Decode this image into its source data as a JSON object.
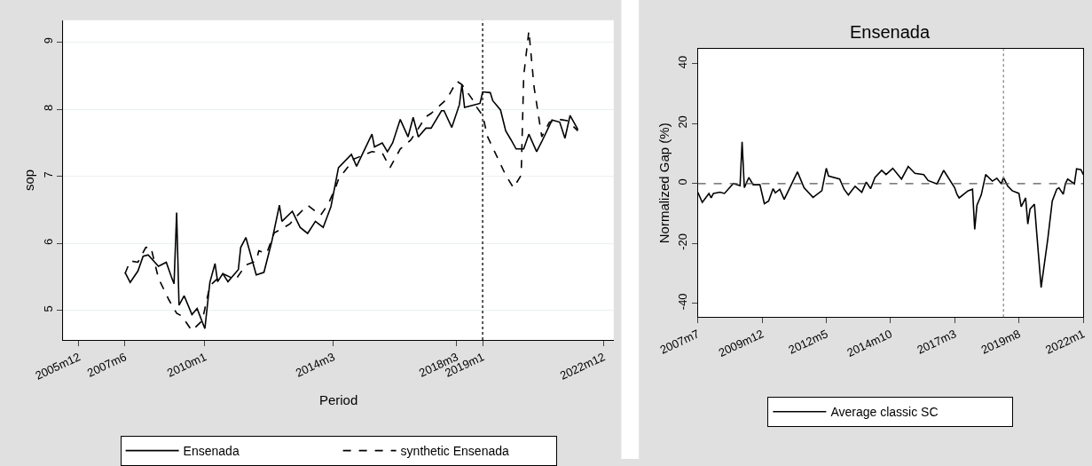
{
  "chart_data": [
    {
      "type": "line",
      "xlabel": "Period",
      "ylabel": "sop",
      "xlim": [
        "2005-06",
        "2023-04"
      ],
      "ylim": [
        4.56,
        9.33
      ],
      "xticks": [
        {
          "value": "2005-12",
          "label": "2005m12"
        },
        {
          "value": "2007-06",
          "label": "2007m6"
        },
        {
          "value": "2010-01",
          "label": "2010m1"
        },
        {
          "value": "2014-03",
          "label": "2014m3"
        },
        {
          "value": "2018-03",
          "label": "2018m3"
        },
        {
          "value": "2019-01",
          "label": "2019m1"
        },
        {
          "value": "2022-12",
          "label": "2022m12"
        }
      ],
      "yticks": [
        5,
        6,
        7,
        8,
        9
      ],
      "grid": "y",
      "legend": "bottom",
      "ref_lines": [
        {
          "axis": "x",
          "value": "2019-01",
          "color": "#000000",
          "line_style": "dotted"
        }
      ],
      "series": [
        {
          "name": "Ensenada",
          "color": "#000000",
          "line_style": "solid",
          "x": [
            "2007-06",
            "2007-08",
            "2007-11",
            "2008-01",
            "2008-03",
            "2008-07",
            "2008-10",
            "2008-12",
            "2009-01",
            "2009-02",
            "2009-03",
            "2009-05",
            "2009-08",
            "2009-10",
            "2010-01",
            "2010-03",
            "2010-05",
            "2010-06",
            "2010-08",
            "2010-10",
            "2011-02",
            "2011-03",
            "2011-05",
            "2011-09",
            "2011-12",
            "2012-03",
            "2012-06",
            "2012-07",
            "2012-11",
            "2013-02",
            "2013-05",
            "2013-08",
            "2013-11",
            "2014-02",
            "2014-05",
            "2014-10",
            "2014-12",
            "2015-06",
            "2015-07",
            "2015-10",
            "2015-12",
            "2016-02",
            "2016-05",
            "2016-08",
            "2016-10",
            "2016-12",
            "2017-03",
            "2017-05",
            "2017-09",
            "2017-10",
            "2018-01",
            "2018-04",
            "2018-05",
            "2018-06",
            "2018-10",
            "2018-12",
            "2019-01",
            "2019-04",
            "2019-05",
            "2019-08",
            "2019-10",
            "2019-12",
            "2020-02",
            "2020-05",
            "2020-07",
            "2020-10",
            "2020-12",
            "2021-04",
            "2021-07",
            "2021-09",
            "2021-11",
            "2022-02"
          ],
          "values": [
            5.57,
            5.42,
            5.59,
            5.81,
            5.83,
            5.66,
            5.72,
            5.5,
            5.4,
            6.46,
            5.08,
            5.22,
            4.94,
            5.03,
            4.73,
            5.42,
            5.7,
            5.43,
            5.55,
            5.43,
            5.61,
            5.94,
            6.09,
            5.53,
            5.57,
            6.02,
            6.57,
            6.33,
            6.48,
            6.24,
            6.15,
            6.33,
            6.24,
            6.55,
            7.13,
            7.33,
            7.15,
            7.63,
            7.44,
            7.5,
            7.37,
            7.5,
            7.85,
            7.59,
            7.88,
            7.59,
            7.72,
            7.72,
            7.98,
            7.98,
            7.73,
            8.07,
            8.37,
            8.03,
            8.07,
            8.09,
            8.26,
            8.25,
            8.13,
            7.99,
            7.68,
            7.55,
            7.41,
            7.41,
            7.63,
            7.37,
            7.52,
            7.84,
            7.81,
            7.57,
            7.91,
            7.7
          ]
        },
        {
          "name": "synthetic Ensenada",
          "color": "#000000",
          "line_style": "dashed",
          "x": [
            "2007-06",
            "2007-08",
            "2007-11",
            "2008-02",
            "2008-04",
            "2008-07",
            "2008-11",
            "2009-02",
            "2009-04",
            "2009-08",
            "2009-12",
            "2010-03",
            "2010-08",
            "2011-01",
            "2011-05",
            "2011-09",
            "2011-10",
            "2012-01",
            "2012-04",
            "2012-07",
            "2012-10",
            "2013-01",
            "2013-05",
            "2013-10",
            "2014-01",
            "2014-04",
            "2014-05",
            "2014-11",
            "2015-06",
            "2015-10",
            "2016-01",
            "2016-05",
            "2016-09",
            "2017-03",
            "2017-05",
            "2017-11",
            "2018-03",
            "2018-05",
            "2018-09",
            "2018-10",
            "2019-01",
            "2019-03",
            "2019-10",
            "2020-01",
            "2020-04",
            "2020-05",
            "2020-07",
            "2020-09",
            "2020-12",
            "2021-03",
            "2021-07",
            "2021-10",
            "2022-02"
          ],
          "values": [
            5.55,
            5.74,
            5.72,
            5.94,
            5.95,
            5.48,
            5.16,
            4.96,
            4.92,
            4.7,
            4.85,
            5.37,
            5.55,
            5.46,
            5.68,
            5.74,
            5.89,
            5.85,
            6.16,
            6.22,
            6.29,
            6.42,
            6.57,
            6.42,
            6.59,
            6.85,
            6.96,
            7.26,
            7.37,
            7.35,
            7.13,
            7.41,
            7.54,
            7.89,
            7.94,
            8.15,
            8.42,
            8.37,
            8.15,
            8.07,
            7.91,
            7.59,
            7.02,
            6.83,
            7.02,
            8.5,
            9.17,
            8.33,
            7.59,
            7.81,
            7.85,
            7.83,
            7.68
          ]
        }
      ]
    },
    {
      "type": "line",
      "title": "Ensenada",
      "ylabel": "Normalized Gap (%)",
      "xlim": [
        "2007-07",
        "2022-01"
      ],
      "ylim": [
        -44.6,
        44.9
      ],
      "xticks": [
        {
          "value": "2007-07",
          "label": "2007m7"
        },
        {
          "value": "2009-12",
          "label": "2009m12"
        },
        {
          "value": "2012-05",
          "label": "2012m5"
        },
        {
          "value": "2014-10",
          "label": "2014m10"
        },
        {
          "value": "2017-03",
          "label": "2017m3"
        },
        {
          "value": "2019-08",
          "label": "2019m8"
        },
        {
          "value": "2022-01",
          "label": "2022m1"
        }
      ],
      "yticks": [
        -40,
        -20,
        0,
        20,
        40
      ],
      "legend": "bottom",
      "ref_lines": [
        {
          "axis": "y",
          "value": 0,
          "color": "#555555",
          "line_style": "dashed"
        },
        {
          "axis": "x",
          "value": "2019-01",
          "color": "#888888",
          "line_style": "dotted"
        }
      ],
      "series": [
        {
          "name": "Average classic SC",
          "color": "#000000",
          "line_style": "solid",
          "x": [
            "2007-07",
            "2007-09",
            "2007-12",
            "2008-01",
            "2008-02",
            "2008-05",
            "2008-07",
            "2008-11",
            "2009-02",
            "2009-03",
            "2009-04",
            "2009-06",
            "2009-08",
            "2009-11",
            "2010-01",
            "2010-03",
            "2010-05",
            "2010-06",
            "2010-08",
            "2010-10",
            "2011-04",
            "2011-07",
            "2011-11",
            "2012-03",
            "2012-05",
            "2012-06",
            "2012-11",
            "2013-01",
            "2013-03",
            "2013-06",
            "2013-09",
            "2013-11",
            "2014-01",
            "2014-03",
            "2014-06",
            "2014-08",
            "2014-11",
            "2015-03",
            "2015-06",
            "2015-09",
            "2016-01",
            "2016-03",
            "2016-07",
            "2016-10",
            "2017-03",
            "2017-04",
            "2017-05",
            "2017-09",
            "2017-11",
            "2017-12",
            "2018-01",
            "2018-03",
            "2018-05",
            "2018-08",
            "2018-10",
            "2018-12",
            "2019-01",
            "2019-03",
            "2019-05",
            "2019-08",
            "2019-09",
            "2019-11",
            "2019-12",
            "2020-01",
            "2020-03",
            "2020-04",
            "2020-06",
            "2020-09",
            "2020-11",
            "2021-01",
            "2021-02",
            "2021-04",
            "2021-05",
            "2021-06",
            "2021-09",
            "2021-10",
            "2021-12",
            "2022-01"
          ],
          "values": [
            -2.9,
            -6.3,
            -3.3,
            -4.8,
            -3.3,
            -2.9,
            -3.3,
            0,
            -0.7,
            13.9,
            -1.4,
            2.0,
            -0.4,
            -0.4,
            -6.7,
            -5.8,
            -1.7,
            -3.1,
            -1.9,
            -5.3,
            3.9,
            -1.4,
            -4.6,
            -2.4,
            5.1,
            2.5,
            1.5,
            -1.9,
            -3.8,
            -0.9,
            -2.9,
            0.5,
            -1.7,
            2.0,
            4.4,
            3.0,
            5.1,
            1.5,
            5.7,
            3.4,
            3.0,
            1.0,
            -0.1,
            4.4,
            -1.4,
            -3.6,
            -4.8,
            -2.4,
            -1.9,
            -15.3,
            -7.2,
            -3.8,
            3.0,
            0.8,
            1.8,
            -0.1,
            2.0,
            -0.9,
            -2.4,
            -3.3,
            -7.7,
            -4.8,
            -13.5,
            -8.5,
            -6.9,
            -16.4,
            -34.7,
            -18.4,
            -5.8,
            -1.9,
            -1.4,
            -3.6,
            0,
            1.5,
            -0.1,
            4.9,
            4.6,
            3.0
          ]
        }
      ]
    }
  ]
}
